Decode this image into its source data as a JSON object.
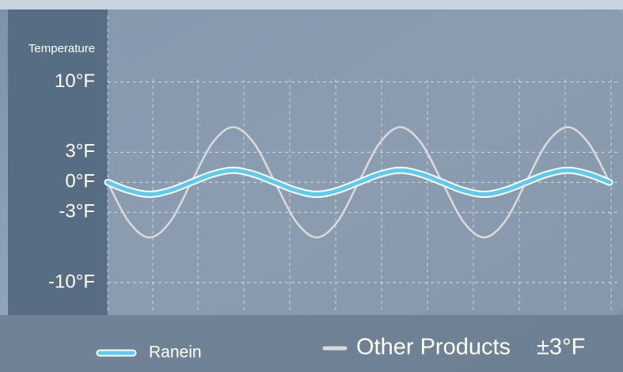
{
  "chart_data": {
    "type": "line",
    "y_label": "Temperature",
    "x": [
      0,
      0.5,
      1,
      1.5,
      2,
      2.5,
      3,
      3.5,
      4,
      4.5,
      5,
      5.5,
      6,
      6.5,
      7,
      7.5,
      8,
      8.5,
      9,
      9.5,
      10,
      10.5,
      11,
      11.5,
      12
    ],
    "xlim": [
      0,
      12
    ],
    "ylim": [
      -13,
      17
    ],
    "yticks": [
      {
        "value": 10,
        "label": "10°F"
      },
      {
        "value": 3,
        "label": "3°F"
      },
      {
        "value": 0,
        "label": "0°F"
      },
      {
        "value": -3,
        "label": "-3°F"
      },
      {
        "value": -10,
        "label": "-10°F"
      }
    ],
    "grid": true,
    "series": [
      {
        "name": "Ranein",
        "color": "#5ccbef",
        "values": [
          0,
          -0.8,
          -1.2,
          -0.8,
          0,
          0.8,
          1.2,
          0.8,
          0,
          -0.8,
          -1.2,
          -0.8,
          0,
          0.8,
          1.2,
          0.8,
          0,
          -0.8,
          -1.2,
          -0.8,
          0,
          0.8,
          1.2,
          0.8,
          0
        ]
      },
      {
        "name": "Other Products",
        "color": "#dadada",
        "values": [
          0,
          -3.9,
          -5.5,
          -3.9,
          0,
          3.9,
          5.5,
          3.9,
          0,
          -3.9,
          -5.5,
          -3.9,
          0,
          3.9,
          5.5,
          3.9,
          0,
          -3.9,
          -5.5,
          -3.9,
          0,
          3.9,
          5.5,
          3.9,
          0
        ]
      }
    ],
    "annotation": "±3°F"
  }
}
